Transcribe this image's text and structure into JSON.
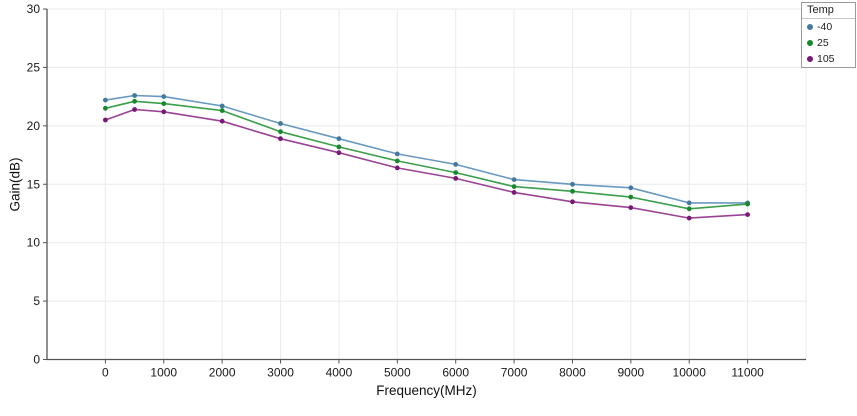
{
  "chart_data": {
    "type": "line",
    "title": "",
    "xlabel": "Frequency(MHz)",
    "ylabel": "Gain(dB)",
    "x": [
      0,
      500,
      1000,
      2000,
      3000,
      4000,
      5000,
      6000,
      7000,
      8000,
      9000,
      10000,
      11000
    ],
    "series": [
      {
        "name": "-40",
        "values": [
          22.2,
          22.6,
          22.5,
          21.7,
          20.2,
          18.9,
          17.6,
          16.7,
          15.4,
          15.0,
          14.7,
          13.4,
          13.4
        ],
        "line_color": "#6899C1",
        "marker_color": "#44799F"
      },
      {
        "name": "25",
        "values": [
          21.5,
          22.1,
          21.9,
          21.3,
          19.5,
          18.2,
          17.0,
          16.0,
          14.8,
          14.4,
          13.9,
          12.9,
          13.3
        ],
        "line_color": "#3C9F4B",
        "marker_color": "#18892A"
      },
      {
        "name": "105",
        "values": [
          20.5,
          21.4,
          21.2,
          20.4,
          18.9,
          17.7,
          16.4,
          15.5,
          14.3,
          13.5,
          13.0,
          12.1,
          12.4
        ],
        "line_color": "#9A4394",
        "marker_color": "#7A1878"
      }
    ],
    "xlim": [
      -1000,
      12000
    ],
    "ylim": [
      0,
      30
    ],
    "x_ticks": [
      0,
      1000,
      2000,
      3000,
      4000,
      5000,
      6000,
      7000,
      8000,
      9000,
      10000,
      11000
    ],
    "y_ticks": [
      0,
      5,
      10,
      15,
      20,
      25,
      30
    ],
    "grid": true,
    "legend": {
      "title": "Temp",
      "position": "top-right"
    }
  },
  "colors": {
    "background": "#FFFFFF",
    "grid": "#EBEBEB",
    "spine": "#545454",
    "tick_text": "#1A1A1A",
    "legend_border": "#9B9B9B"
  }
}
